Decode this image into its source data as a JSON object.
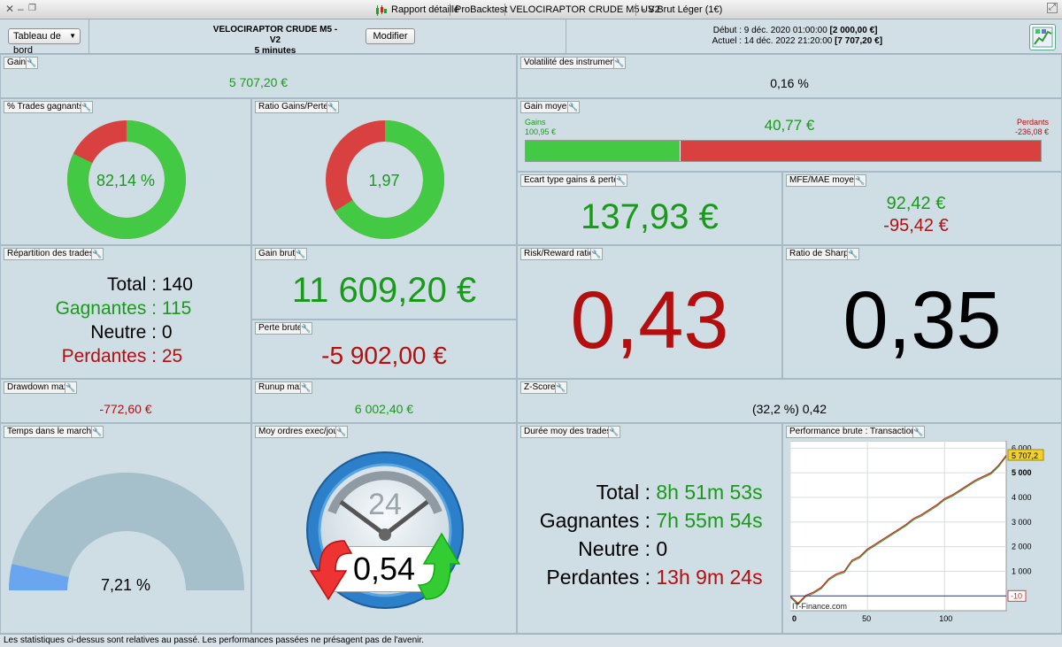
{
  "titlebar": {
    "report_label": "Rapport détaillé",
    "app_label": "ProBacktest",
    "strategy_label": "VELOCIRAPTOR CRUDE M5 - V2",
    "instrument_label": "US Brut Léger (1€)"
  },
  "toolbar": {
    "dashboard_select": "Tableau de bord",
    "strategy_name": "VELOCIRAPTOR CRUDE M5 - V2",
    "timeframe": "5 minutes",
    "modify_label": "Modifier",
    "start_label": "Début :",
    "start_date": "9 déc. 2020 01:00:00",
    "start_capital": "[2 000,00 €]",
    "current_label": "Actuel :",
    "current_date": "14 déc. 2022 21:20:00",
    "current_capital": "[7 707,20 €]"
  },
  "panels": {
    "gain": {
      "title": "Gain",
      "value": "5 707,20 €"
    },
    "volatility": {
      "title": "Volatilité des instruments",
      "value": "0,16 %"
    },
    "win_pct": {
      "title": "% Trades gagnants",
      "value": "82,14 %",
      "fraction": 0.8214
    },
    "ratio": {
      "title": "Ratio Gains/Pertes",
      "value": "1,97",
      "fraction": 0.66
    },
    "avg_gain": {
      "title": "Gain moyen",
      "value": "40,77 €",
      "gains_label": "Gains",
      "gains_value": "100,95 €",
      "losses_label": "Perdants",
      "losses_value": "-236,08 €",
      "gain_fraction": 0.3
    },
    "stddev": {
      "title": "Ecart type gains & pertes",
      "value": "137,93 €"
    },
    "mfe_mae": {
      "title": "MFE/MAE moyen",
      "mfe": "92,42 €",
      "mae": "-95,42 €"
    },
    "distribution": {
      "title": "Répartition des trades",
      "total_label": "Total :",
      "total": "140",
      "win_label": "Gagnantes :",
      "win": "115",
      "neutral_label": "Neutre :",
      "neutral": "0",
      "loss_label": "Perdantes :",
      "loss": "25"
    },
    "gross_gain": {
      "title": "Gain brut",
      "value": "11 609,20 €"
    },
    "gross_loss": {
      "title": "Perte brute",
      "value": "-5 902,00 €"
    },
    "risk_reward": {
      "title": "Risk/Reward ratio",
      "value": "0,43"
    },
    "sharpe": {
      "title": "Ratio de Sharpe",
      "value": "0,35"
    },
    "drawdown": {
      "title": "Drawdown max",
      "value": "-772,60 €"
    },
    "runup": {
      "title": "Runup max",
      "value": "6 002,40 €"
    },
    "zscore": {
      "title": "Z-Score",
      "value": "(32,2 %) 0,42"
    },
    "time_in_market": {
      "title": "Temps dans le marché",
      "value": "7,21 %",
      "fraction": 0.0721
    },
    "orders_per_day": {
      "title": "Moy ordres exec/jour",
      "value": "0,54",
      "clock_label": "24"
    },
    "duration": {
      "title": "Durée moy des trades",
      "total_label": "Total :",
      "total": "8h 51m 53s",
      "win_label": "Gagnantes :",
      "win": "7h 55m 54s",
      "neutral_label": "Neutre :",
      "neutral": "0",
      "loss_label": "Perdantes :",
      "loss": "13h 9m 24s"
    },
    "performance": {
      "title": "Performance brute : Transactions",
      "last_value": "5 707,2",
      "min_value": "-10",
      "watermark": "IT-Finance.com"
    }
  },
  "chart_data": {
    "type": "line",
    "title": "Performance brute : Transactions",
    "xlabel": "",
    "ylabel": "",
    "x_ticks": [
      "0",
      "50",
      "100"
    ],
    "y_ticks": [
      "1 000",
      "2 000",
      "3 000",
      "4 000",
      "5 000",
      "6 000"
    ],
    "xlim": [
      0,
      140
    ],
    "ylim": [
      -600,
      6300
    ],
    "x": [
      0,
      5,
      10,
      15,
      20,
      25,
      30,
      35,
      40,
      45,
      50,
      55,
      60,
      65,
      70,
      75,
      80,
      85,
      90,
      95,
      100,
      105,
      110,
      115,
      120,
      125,
      130,
      135,
      140
    ],
    "values": [
      -10,
      -300,
      20,
      150,
      350,
      700,
      900,
      1000,
      1450,
      1600,
      1900,
      2100,
      2300,
      2500,
      2700,
      2900,
      3150,
      3300,
      3500,
      3700,
      3950,
      4100,
      4300,
      4500,
      4700,
      4850,
      5000,
      5300,
      5707.2
    ]
  },
  "statusbar": {
    "text": "Les statistiques ci-dessus sont relatives au passé. Les performances passées ne présagent pas de l'avenir."
  }
}
